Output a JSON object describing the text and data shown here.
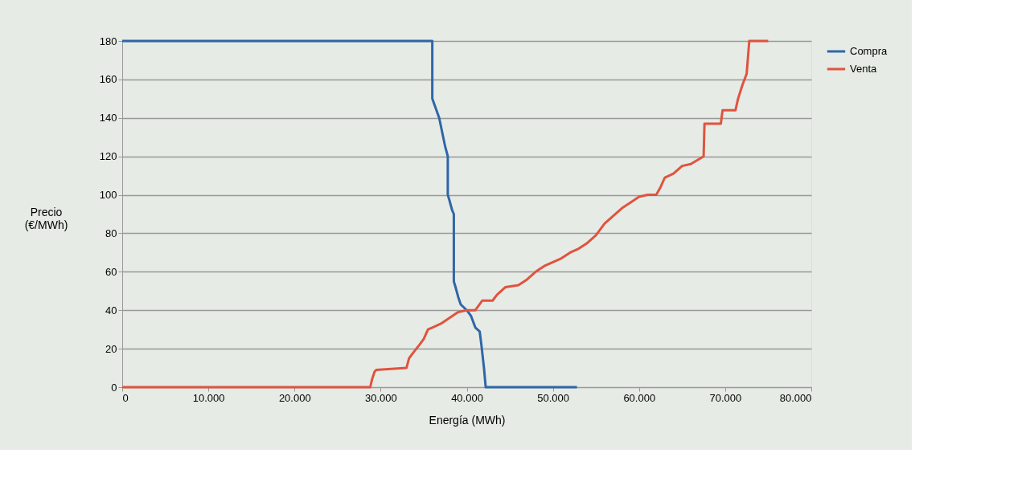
{
  "chart_data": {
    "type": "line",
    "xlabel": "Energía (MWh)",
    "ylabel": "Precio (€/MWh)",
    "xlim": [
      0,
      80000
    ],
    "ylim": [
      0,
      180
    ],
    "xticks": [
      0,
      {
        "value": 10000,
        "label": "10.000"
      },
      {
        "value": 20000,
        "label": "20.000"
      },
      {
        "value": 30000,
        "label": "30.000"
      },
      {
        "value": 40000,
        "label": "40.000"
      },
      {
        "value": 50000,
        "label": "50.000"
      },
      {
        "value": 60000,
        "label": "60.000"
      },
      {
        "value": 70000,
        "label": "70.000"
      },
      {
        "value": 80000,
        "label": "80.000"
      }
    ],
    "yticks": [
      0,
      20,
      40,
      60,
      80,
      100,
      120,
      140,
      160,
      180
    ],
    "grid": "y",
    "legend": "right",
    "marker": "none",
    "line_style": "solid",
    "series": [
      {
        "name": "Compra",
        "color": "#2f66a8",
        "x": [
          0,
          36000,
          36000,
          36800,
          37500,
          37800,
          37800,
          38000,
          38300,
          38500,
          38500,
          38700,
          39000,
          39300,
          40000,
          40500,
          41000,
          41500,
          41700,
          42000,
          42200,
          52800
        ],
        "values": [
          180,
          180,
          150,
          140,
          125,
          120,
          100,
          97,
          92,
          90,
          55,
          52,
          47,
          43,
          40,
          37,
          31,
          29,
          22,
          10,
          0,
          0
        ]
      },
      {
        "name": "Venta",
        "color": "#e0533f",
        "x": [
          0,
          28800,
          29000,
          29300,
          29500,
          33000,
          33300,
          33800,
          34500,
          35000,
          35500,
          36000,
          37000,
          38000,
          39000,
          40000,
          41000,
          41800,
          43000,
          43500,
          44500,
          46000,
          47000,
          48000,
          49000,
          50000,
          51000,
          52000,
          53000,
          54000,
          55000,
          56000,
          57000,
          58000,
          59000,
          60000,
          61000,
          62000,
          62500,
          63000,
          64000,
          65000,
          66000,
          67500,
          67600,
          69500,
          69700,
          71200,
          71500,
          72000,
          72500,
          72800,
          75000
        ],
        "values": [
          0,
          0,
          4,
          8,
          9,
          10,
          15,
          18,
          22,
          25,
          30,
          31,
          33,
          36,
          39,
          40,
          40,
          45,
          45,
          48,
          52,
          53,
          56,
          60,
          63,
          65,
          67,
          70,
          72,
          75,
          79,
          85,
          89,
          93,
          96,
          99,
          100,
          100,
          104,
          109,
          111,
          115,
          116,
          120,
          137,
          137,
          144,
          144,
          150,
          157,
          163,
          180,
          180
        ]
      }
    ]
  }
}
